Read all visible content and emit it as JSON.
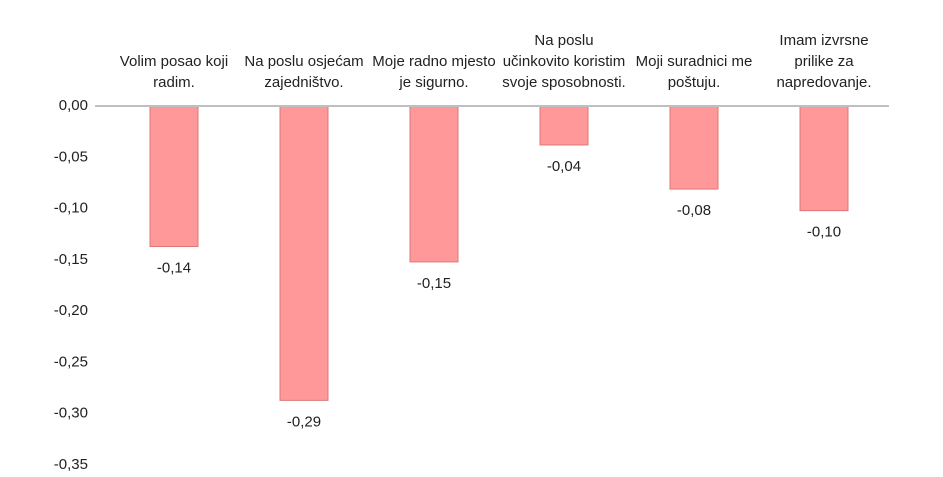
{
  "chart_data": {
    "type": "bar",
    "categories": [
      "Volim posao koji radim.",
      "Na poslu osjećam zajedništvo.",
      "Moje radno mjesto je sigurno.",
      "Na poslu učinkovito koristim svoje sposobnosti.",
      "Moji suradnici me poštuju.",
      "Imam izvrsne prilike za napredovanje."
    ],
    "values": [
      -0.137,
      -0.287,
      -0.152,
      -0.038,
      -0.081,
      -0.102
    ],
    "value_labels": [
      "-0,14",
      "-0,29",
      "-0,15",
      "-0,04",
      "-0,08",
      "-0,10"
    ],
    "color": "#ff9999",
    "ylim": [
      0,
      -0.35
    ],
    "yticks": [
      {
        "value": 0,
        "label": "0,00"
      },
      {
        "value": -0.05,
        "label": "-0,05"
      },
      {
        "value": -0.1,
        "label": "-0,10"
      },
      {
        "value": -0.15,
        "label": "-0,15"
      },
      {
        "value": -0.2,
        "label": "-0,20"
      },
      {
        "value": -0.25,
        "label": "-0,25"
      },
      {
        "value": -0.3,
        "label": "-0,30"
      },
      {
        "value": -0.35,
        "label": "-0,35"
      }
    ],
    "grid": false
  }
}
